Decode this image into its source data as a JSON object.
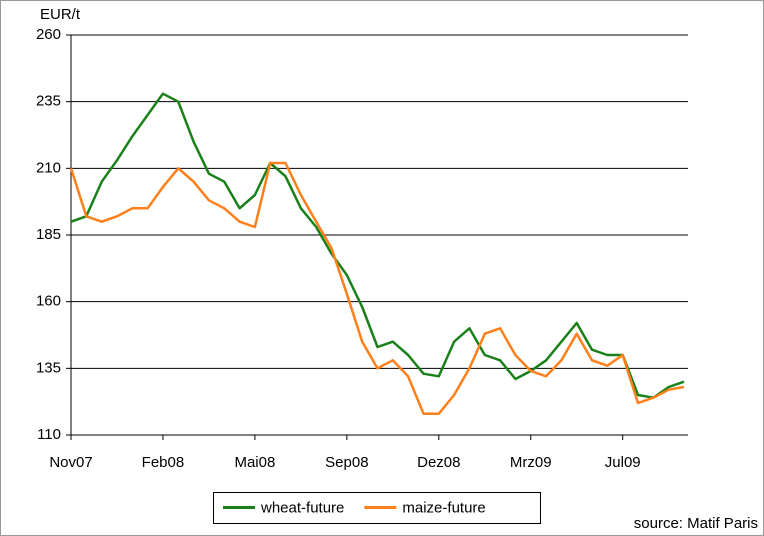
{
  "chart_data": {
    "type": "line",
    "ylabel": "EUR/t",
    "annotation": "source: Matif Paris",
    "categories": [
      "Nov07",
      null,
      null,
      null,
      null,
      null,
      "Feb08",
      null,
      null,
      null,
      null,
      null,
      "Mai08",
      null,
      null,
      null,
      null,
      null,
      "Sep08",
      null,
      null,
      null,
      null,
      null,
      "Dez08",
      null,
      null,
      null,
      null,
      null,
      "Mrz09",
      null,
      null,
      null,
      null,
      null,
      "Jul09",
      null,
      null,
      null,
      null
    ],
    "series": [
      {
        "name": "wheat-future",
        "color": "#1a801a",
        "values": [
          190,
          192,
          205,
          213,
          222,
          230,
          238,
          235,
          220,
          208,
          205,
          195,
          200,
          212,
          207,
          195,
          188,
          178,
          170,
          158,
          143,
          145,
          140,
          133,
          132,
          145,
          150,
          140,
          138,
          131,
          134,
          138,
          145,
          152,
          142,
          140,
          140,
          125,
          124,
          128,
          130
        ]
      },
      {
        "name": "maize-future",
        "color": "#ff7f1a",
        "values": [
          210,
          192,
          190,
          192,
          195,
          195,
          203,
          210,
          205,
          198,
          195,
          190,
          188,
          212,
          212,
          200,
          190,
          180,
          163,
          145,
          135,
          138,
          132,
          118,
          118,
          125,
          135,
          148,
          150,
          140,
          134,
          132,
          138,
          148,
          138,
          136,
          140,
          122,
          124,
          127,
          128
        ]
      }
    ],
    "ylim": [
      110,
      260
    ],
    "yticks": [
      110,
      135,
      160,
      185,
      210,
      235,
      260
    ],
    "grid": true,
    "legend": "bottom"
  }
}
